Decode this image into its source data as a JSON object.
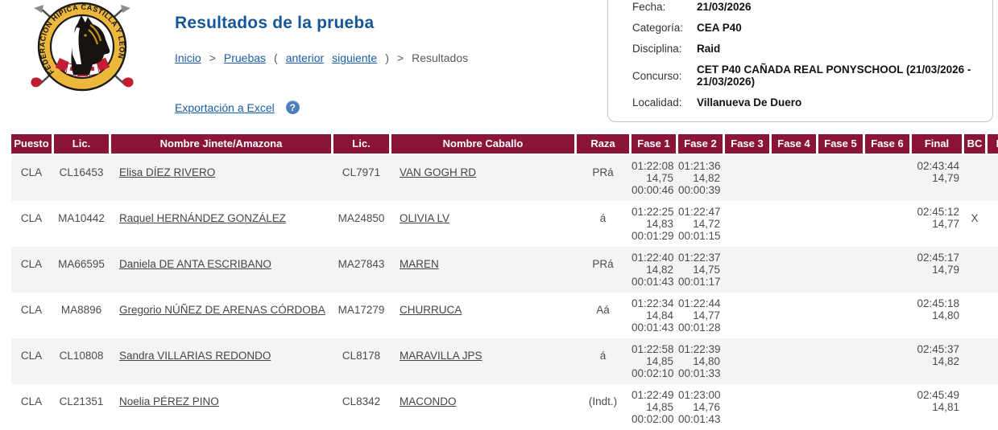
{
  "logo": {
    "text": "FEDERACION HIPICA CASTILLA Y LEON"
  },
  "header": {
    "title": "Resultados de la prueba",
    "breadcrumb": [
      {
        "label": "Inicio",
        "link": true
      },
      {
        "label": ">",
        "link": false
      },
      {
        "label": "Pruebas",
        "link": true
      },
      {
        "label": "(",
        "link": false
      },
      {
        "label": "anterior",
        "link": true
      },
      {
        "label": "siguiente",
        "link": true
      },
      {
        "label": ")",
        "link": false
      },
      {
        "label": ">",
        "link": false
      },
      {
        "label": "Resultados",
        "link": false
      }
    ],
    "export_label": "Exportación a Excel",
    "help_icon": "?"
  },
  "info_panel": {
    "fields": [
      {
        "label": "Fecha:",
        "value": "21/03/2026"
      },
      {
        "label": "Categoría:",
        "value": "CEA P40"
      },
      {
        "label": "Disciplina:",
        "value": "Raid"
      },
      {
        "label": "Concurso:",
        "value": "CET P40 CAÑADA REAL PONYSCHOOL (21/03/2026 - 21/03/2026)"
      },
      {
        "label": "Localidad:",
        "value": "Villanueva De Duero"
      }
    ]
  },
  "table": {
    "columns": [
      "Puesto",
      "Lic.",
      "Nombre Jinete/Amazona",
      "Lic.",
      "Nombre Caballo",
      "Raza",
      "Fase 1",
      "Fase 2",
      "Fase 3",
      "Fase 4",
      "Fase 5",
      "Fase 6",
      "Final",
      "BC",
      "P"
    ],
    "rows": [
      {
        "puesto": "CLA",
        "lic_jinete": "CL16453",
        "jinete": "Elisa DÍEZ RIVERO",
        "lic_caballo": "CL7971",
        "caballo": "VAN GOGH RD",
        "raza": "PRá",
        "fases": [
          [
            "01:22:08",
            "14,75",
            "00:00:46"
          ],
          [
            "01:21:36",
            "14,82",
            "00:00:39"
          ],
          [],
          [],
          [],
          []
        ],
        "final": [
          "02:43:44",
          "14,79"
        ],
        "bc": "",
        "p": ""
      },
      {
        "puesto": "CLA",
        "lic_jinete": "MA10442",
        "jinete": "Raquel HERNÁNDEZ GONZÁLEZ",
        "lic_caballo": "MA24850",
        "caballo": "OLIVIA LV",
        "raza": "á",
        "fases": [
          [
            "01:22:25",
            "14,83",
            "00:01:29"
          ],
          [
            "01:22:47",
            "14,72",
            "00:01:15"
          ],
          [],
          [],
          [],
          []
        ],
        "final": [
          "02:45:12",
          "14,77"
        ],
        "bc": "X",
        "p": ""
      },
      {
        "puesto": "CLA",
        "lic_jinete": "MA66595",
        "jinete": "Daniela DE ANTA ESCRIBANO",
        "lic_caballo": "MA27843",
        "caballo": "MAREN",
        "raza": "PRá",
        "fases": [
          [
            "01:22:40",
            "14,82",
            "00:01:43"
          ],
          [
            "01:22:37",
            "14,75",
            "00:01:17"
          ],
          [],
          [],
          [],
          []
        ],
        "final": [
          "02:45:17",
          "14,79"
        ],
        "bc": "",
        "p": ""
      },
      {
        "puesto": "CLA",
        "lic_jinete": "MA8896",
        "jinete": "Gregorio NÚÑEZ DE ARENAS CÓRDOBA",
        "lic_caballo": "MA17279",
        "caballo": "CHURRUCA",
        "raza": "Aá",
        "fases": [
          [
            "01:22:34",
            "14,84",
            "00:01:43"
          ],
          [
            "01:22:44",
            "14,77",
            "00:01:28"
          ],
          [],
          [],
          [],
          []
        ],
        "final": [
          "02:45:18",
          "14,80"
        ],
        "bc": "",
        "p": ""
      },
      {
        "puesto": "CLA",
        "lic_jinete": "CL10808",
        "jinete": "Sandra VILLARIAS REDONDO",
        "lic_caballo": "CL8178",
        "caballo": "MARAVILLA JPS",
        "raza": "á",
        "fases": [
          [
            "01:22:58",
            "14,85",
            "00:02:10"
          ],
          [
            "01:22:39",
            "14,80",
            "00:01:33"
          ],
          [],
          [],
          [],
          []
        ],
        "final": [
          "02:45:37",
          "14,82"
        ],
        "bc": "",
        "p": ""
      },
      {
        "puesto": "CLA",
        "lic_jinete": "CL21351",
        "jinete": "Noelia PÉREZ PINO",
        "lic_caballo": "CL8342",
        "caballo": "MACONDO",
        "raza": "(Indt.)",
        "fases": [
          [
            "01:22:49",
            "14,85",
            "00:02:00"
          ],
          [
            "01:23:00",
            "14,76",
            "00:01:43"
          ],
          [],
          [],
          [],
          []
        ],
        "final": [
          "02:45:49",
          "14,81"
        ],
        "bc": "",
        "p": ""
      }
    ]
  },
  "colors": {
    "table_header_bg": "#8a1538",
    "row_alt_bg": "#f4f4f4",
    "title_blue": "#175795",
    "link_blue": "#1a5da8",
    "help_icon_bg": "#4d7ebe",
    "panel_border": "#c4c4c4",
    "logo_gold": "#edb73c",
    "logo_red": "#c21d33"
  }
}
